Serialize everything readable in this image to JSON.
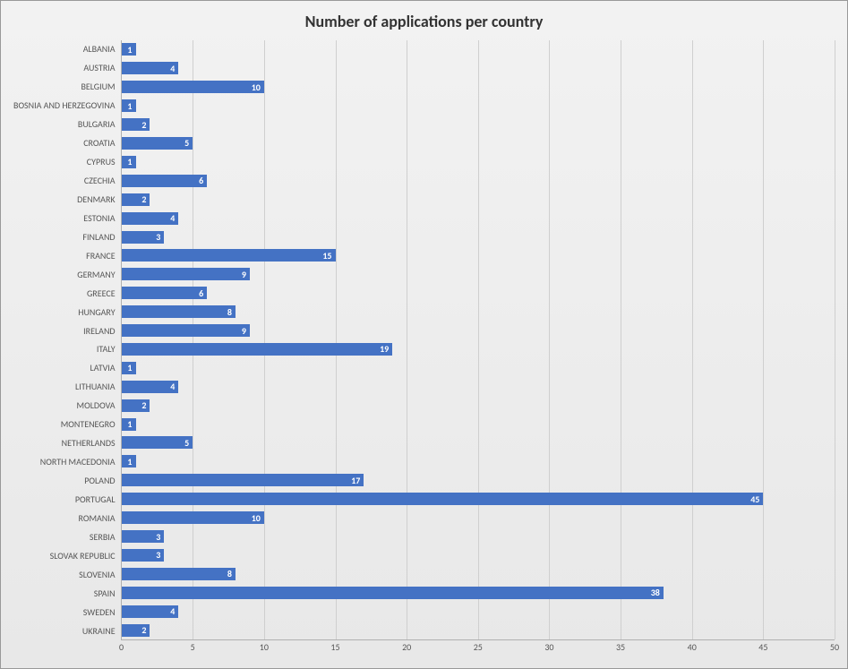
{
  "chart": {
    "type": "bar",
    "orientation": "horizontal",
    "title": "Number of applications per country",
    "title_fontsize": 18,
    "title_fontweight": "bold",
    "title_color": "#333333",
    "background_gradient": {
      "from": "#f2f2f2",
      "to": "#e8e8e8"
    },
    "border_color": "#999999",
    "plot_border_color": "#b0b0b0",
    "grid_color": "#cfcfcf",
    "bar_color": "#4472c4",
    "data_label_color": "#ffffff",
    "data_label_fontsize": 10,
    "data_label_fontweight": "bold",
    "axis_label_color": "#555555",
    "axis_label_fontsize": 10,
    "y_axis_label_fontsize": 10,
    "bar_height_ratio": 0.65,
    "xlim": [
      0,
      50
    ],
    "xtick_step": 5,
    "categories": [
      "ALBANIA",
      "AUSTRIA",
      "BELGIUM",
      "BOSNIA AND HERZEGOVINA",
      "BULGARIA",
      "CROATIA",
      "CYPRUS",
      "CZECHIA",
      "DENMARK",
      "ESTONIA",
      "FINLAND",
      "FRANCE",
      "GERMANY",
      "GREECE",
      "HUNGARY",
      "IRELAND",
      "ITALY",
      "LATVIA",
      "LITHUANIA",
      "MOLDOVA",
      "MONTENEGRO",
      "NETHERLANDS",
      "NORTH MACEDONIA",
      "POLAND",
      "PORTUGAL",
      "ROMANIA",
      "SERBIA",
      "SLOVAK REPUBLIC",
      "SLOVENIA",
      "SPAIN",
      "SWEDEN",
      "UKRAINE"
    ],
    "values": [
      1,
      4,
      10,
      1,
      2,
      5,
      1,
      6,
      2,
      4,
      3,
      15,
      9,
      6,
      8,
      9,
      19,
      1,
      4,
      2,
      1,
      5,
      1,
      17,
      45,
      10,
      3,
      3,
      8,
      38,
      4,
      2
    ]
  }
}
